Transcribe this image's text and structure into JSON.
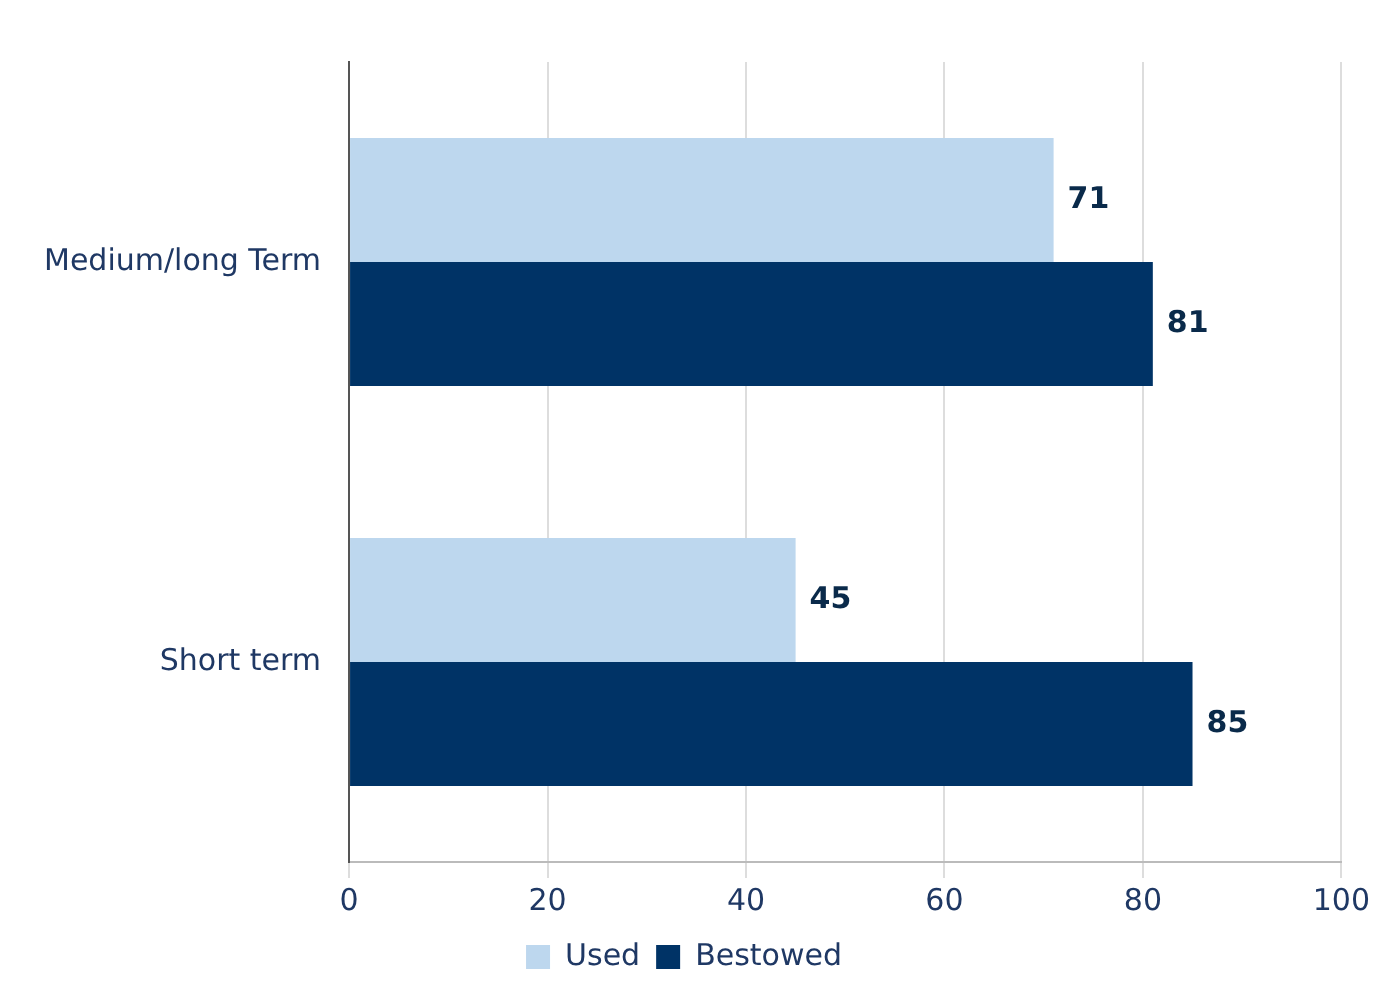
{
  "chart_data": {
    "type": "bar",
    "orientation": "horizontal",
    "categories": [
      "Medium/long Term",
      "Short term"
    ],
    "series": [
      {
        "name": "Used",
        "color": "#bdd7ee",
        "values": [
          71,
          45
        ]
      },
      {
        "name": "Bestowed",
        "color": "#003366",
        "values": [
          81,
          85
        ]
      }
    ],
    "xlim": [
      0,
      100
    ],
    "xticks": [
      0,
      20,
      40,
      60,
      80,
      100
    ],
    "grid": "x",
    "legend": "bottom",
    "data_labels": true
  }
}
